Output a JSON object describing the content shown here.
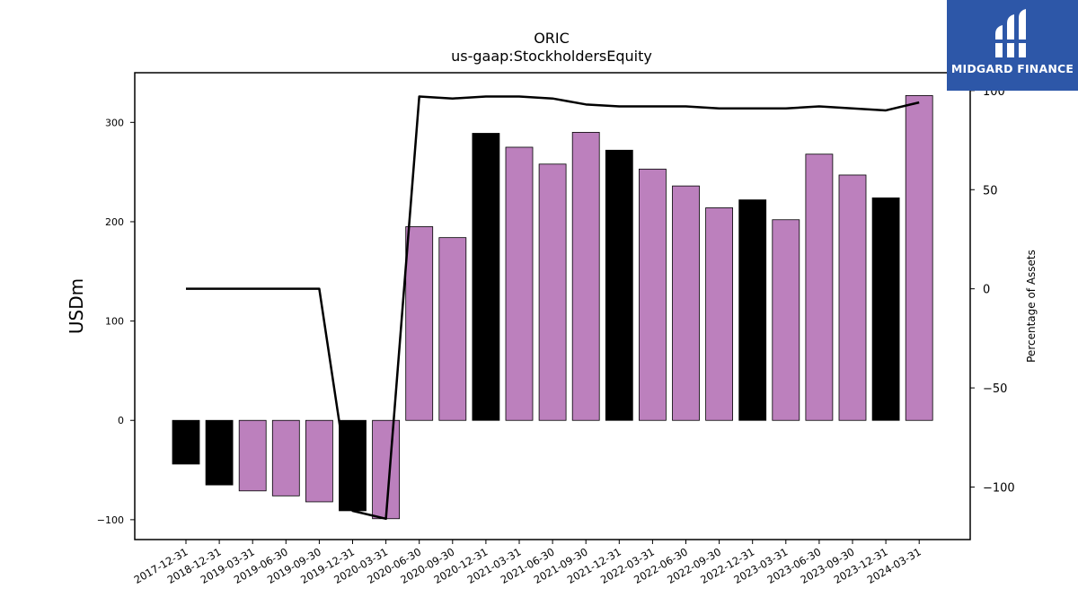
{
  "chart_data": {
    "type": "bar",
    "title": "ORIC",
    "subtitle": "us-gaap:StockholdersEquity",
    "ylabel": "USDm",
    "y2label": "Percentage of Assets",
    "categories": [
      "2017-12-31",
      "2018-12-31",
      "2019-03-31",
      "2019-06-30",
      "2019-09-30",
      "2019-12-31",
      "2020-03-31",
      "2020-06-30",
      "2020-09-30",
      "2020-12-31",
      "2021-03-31",
      "2021-06-30",
      "2021-09-30",
      "2021-12-31",
      "2022-03-31",
      "2022-06-30",
      "2022-09-30",
      "2022-12-31",
      "2023-03-31",
      "2023-06-30",
      "2023-09-30",
      "2023-12-31",
      "2024-03-31"
    ],
    "series": [
      {
        "type": "bar",
        "values": [
          -44,
          -65,
          -71,
          -76,
          -82,
          -91,
          -99,
          195,
          184,
          289,
          275,
          258,
          290,
          272,
          253,
          236,
          214,
          222,
          202,
          268,
          247,
          224,
          327
        ],
        "bar_colors": [
          "#000000",
          "#000000",
          "#bc80bd",
          "#bc80bd",
          "#bc80bd",
          "#000000",
          "#bc80bd",
          "#bc80bd",
          "#bc80bd",
          "#000000",
          "#bc80bd",
          "#bc80bd",
          "#bc80bd",
          "#000000",
          "#bc80bd",
          "#bc80bd",
          "#bc80bd",
          "#000000",
          "#bc80bd",
          "#bc80bd",
          "#bc80bd",
          "#000000",
          "#bc80bd"
        ]
      },
      {
        "type": "line",
        "axis": "right",
        "values": [
          0,
          0,
          0,
          0,
          0,
          -112,
          -116,
          97,
          96,
          97,
          97,
          96,
          93,
          92,
          92,
          92,
          91,
          91,
          91,
          92,
          91,
          90,
          94
        ]
      }
    ],
    "ylim": [
      -120,
      350
    ],
    "y2lim": [
      -126.5,
      109
    ],
    "yticks": [
      -100,
      0,
      100,
      200,
      300
    ],
    "y2ticks": [
      -100,
      -50,
      0,
      50,
      100
    ],
    "grid": false,
    "colors": {
      "highlight": "#000000",
      "normal": "#bc80bd",
      "line": "#000000"
    }
  },
  "logo": {
    "text": "MIDGARD FINANCE",
    "background": "#2d57a8"
  }
}
